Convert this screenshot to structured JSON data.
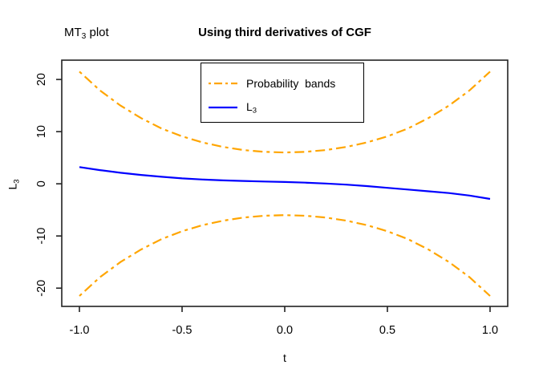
{
  "header": {
    "plot_label": {
      "prefix": "MT",
      "sub": "3",
      "suffix": " plot"
    },
    "title": "Using third derivatives of CGF"
  },
  "axes": {
    "x": {
      "label": "t",
      "ticks": [
        {
          "value": -1.0,
          "label": "-1.0"
        },
        {
          "value": -0.5,
          "label": "-0.5"
        },
        {
          "value": 0.0,
          "label": "0.0"
        },
        {
          "value": 0.5,
          "label": "0.5"
        },
        {
          "value": 1.0,
          "label": "1.0"
        }
      ]
    },
    "y": {
      "label_prefix": "L",
      "label_sub": "3",
      "ticks": [
        {
          "value": 20,
          "label": "20"
        },
        {
          "value": 10,
          "label": "10"
        },
        {
          "value": 0,
          "label": "0"
        },
        {
          "value": -10,
          "label": "-10"
        },
        {
          "value": -20,
          "label": "-20"
        }
      ]
    }
  },
  "legend": {
    "entries": [
      {
        "label": "Probability  bands",
        "color": "#FFA500",
        "style": "dotdash"
      },
      {
        "label_prefix": "L",
        "label_sub": "3",
        "color": "#0000FF",
        "style": "solid"
      }
    ]
  },
  "colors": {
    "band": "#FFA500",
    "line": "#0000FF",
    "frame": "#222222",
    "text": "#000000"
  },
  "chart_data": {
    "type": "line",
    "title": "Using third derivatives of CGF",
    "corner_label": "MT3 plot",
    "xlabel": "t",
    "ylabel": "L3",
    "xlim": [
      -1.086,
      1.086
    ],
    "ylim": [
      -23.5,
      23.7
    ],
    "x_ticks": [
      -1.0,
      -0.5,
      0.0,
      0.5,
      1.0
    ],
    "y_ticks": [
      20,
      10,
      0,
      -10,
      -20
    ],
    "grid": false,
    "legend_position": "top-center-inside",
    "x": [
      -1.0,
      -0.9,
      -0.8,
      -0.7,
      -0.6,
      -0.5,
      -0.4,
      -0.3,
      -0.2,
      -0.1,
      0.0,
      0.1,
      0.2,
      0.3,
      0.4,
      0.5,
      0.6,
      0.7,
      0.8,
      0.9,
      1.0
    ],
    "series": [
      {
        "name": "probability_band_upper",
        "legend": "Probability bands",
        "color": "#FFA500",
        "linetype": "dotdash",
        "values": [
          21.5,
          17.9,
          15.0,
          12.6,
          10.6,
          9.1,
          7.93,
          7.06,
          6.46,
          6.12,
          6.0,
          6.12,
          6.46,
          7.06,
          7.93,
          9.1,
          10.6,
          12.6,
          15.0,
          17.9,
          21.5
        ]
      },
      {
        "name": "probability_band_lower",
        "legend": "Probability bands",
        "color": "#FFA500",
        "linetype": "dotdash",
        "values": [
          -21.5,
          -17.9,
          -15.0,
          -12.6,
          -10.6,
          -9.1,
          -7.93,
          -7.06,
          -6.46,
          -6.12,
          -6.0,
          -6.12,
          -6.46,
          -7.06,
          -7.93,
          -9.1,
          -10.6,
          -12.6,
          -15.0,
          -17.9,
          -21.5
        ]
      },
      {
        "name": "L3",
        "legend": "L3",
        "color": "#0000FF",
        "linetype": "solid",
        "values": [
          3.2,
          2.62,
          2.12,
          1.7,
          1.34,
          1.04,
          0.82,
          0.66,
          0.54,
          0.44,
          0.35,
          0.22,
          0.05,
          -0.16,
          -0.44,
          -0.78,
          -1.1,
          -1.44,
          -1.78,
          -2.26,
          -2.9
        ]
      }
    ]
  }
}
